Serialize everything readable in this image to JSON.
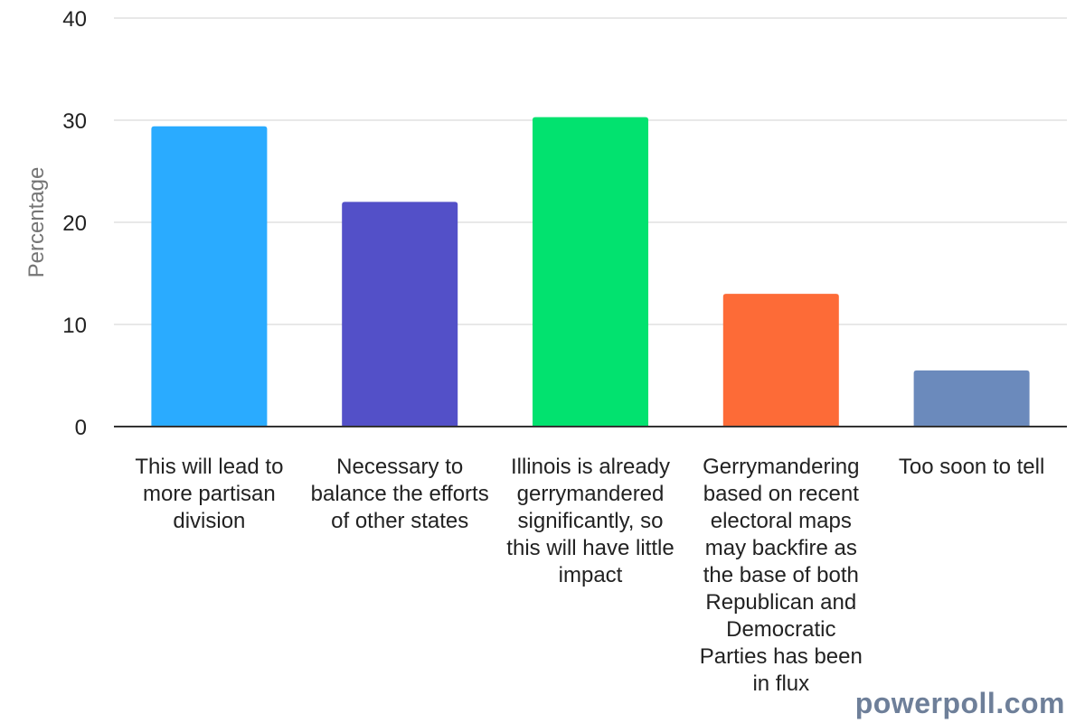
{
  "chart_data": {
    "type": "bar",
    "categories": [
      "This will lead to more partisan division",
      "Necessary to balance the efforts of other states",
      "Illinois is already gerrymandered significantly, so this will have little impact",
      "Gerrymandering based on recent electoral maps may backfire as the base of both Republican and Democratic Parties has been in flux",
      "Too soon to tell"
    ],
    "values": [
      29.4,
      22.0,
      30.3,
      13.0,
      5.5
    ],
    "colors": [
      "#2aabff",
      "#5350c8",
      "#02e26f",
      "#fd6b37",
      "#6b8abc"
    ],
    "ylabel": "Percentage",
    "ylim": [
      0,
      40
    ],
    "yticks": [
      "0",
      "10",
      "20",
      "30",
      "40"
    ],
    "grid": true
  },
  "watermark": "powerpoll.com"
}
